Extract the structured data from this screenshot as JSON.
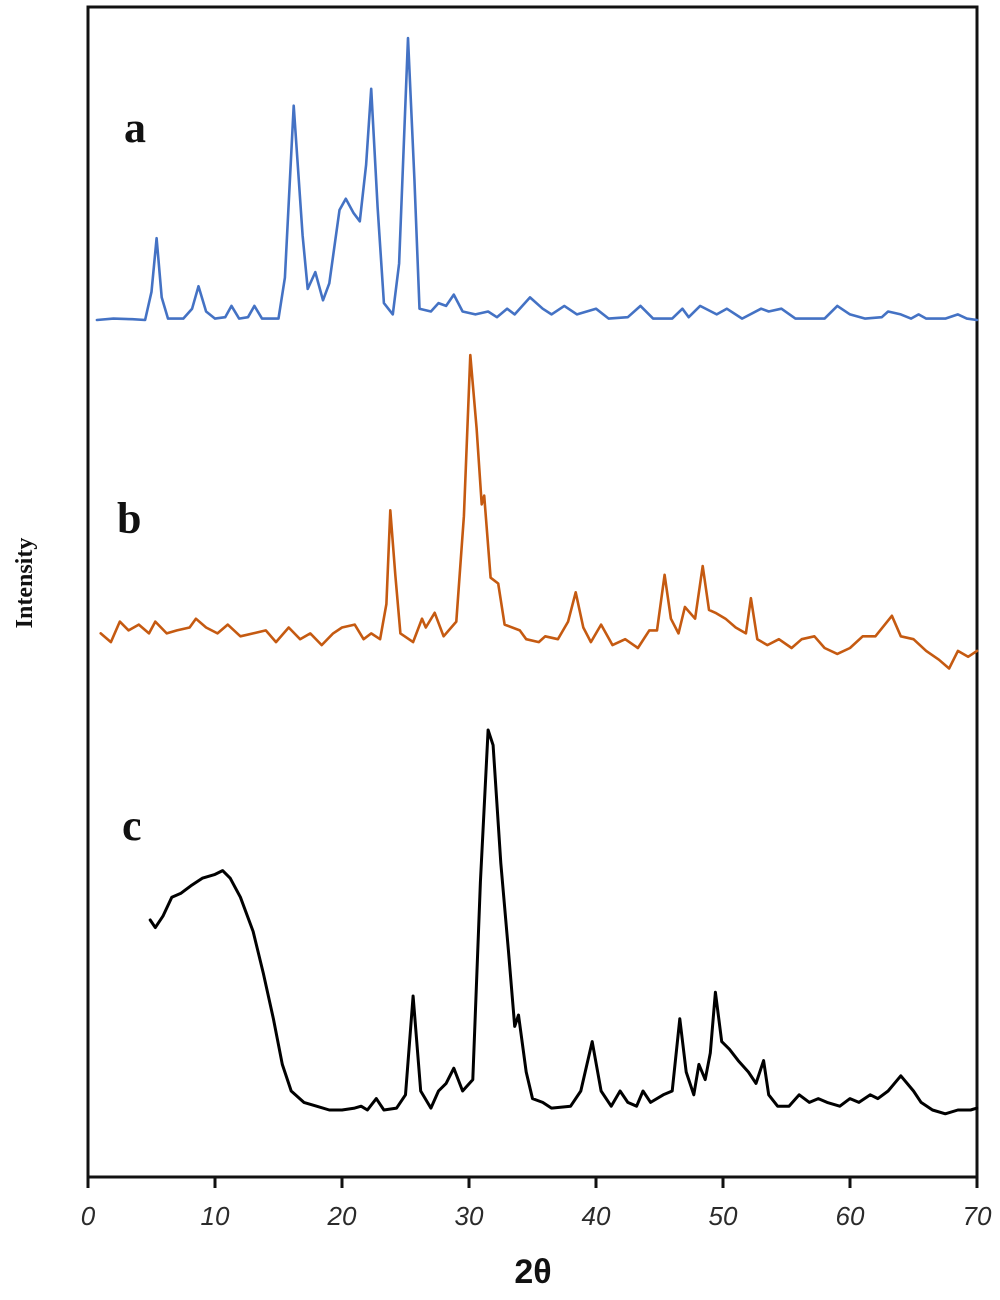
{
  "chart_data": {
    "type": "line",
    "title": "",
    "xlabel": "2θ",
    "ylabel": "Intensity",
    "xlim": [
      0,
      70
    ],
    "x_ticks": [
      0,
      10,
      20,
      30,
      40,
      50,
      60,
      70
    ],
    "x_tick_labels": [
      "0",
      "10",
      "20",
      "30",
      "40",
      "50",
      "60",
      "70"
    ],
    "y_ticks": [],
    "grid": false,
    "legend": "none (traces labeled inline a, b, c)",
    "note": "Stacked XRD patterns; intensity in arbitrary units, vertically offset. y values are relative (0 = trace baseline region, 100 = tallest peak of that trace).",
    "series": [
      {
        "name": "a",
        "label": "a",
        "color": "#4472C4",
        "peaks_2theta": [
          5.4,
          8.7,
          11.3,
          13.1,
          16.2,
          17.9,
          20.3,
          22.3,
          25.2,
          28.8,
          34.8,
          37.5,
          43.5,
          48,
          53.5,
          59,
          63
        ],
        "points": [
          [
            0.7,
            0
          ],
          [
            2,
            0.5
          ],
          [
            3.5,
            0.3
          ],
          [
            4.5,
            0
          ],
          [
            5.0,
            10
          ],
          [
            5.4,
            29
          ],
          [
            5.8,
            8
          ],
          [
            6.3,
            0.5
          ],
          [
            7.5,
            0.5
          ],
          [
            8.2,
            4
          ],
          [
            8.7,
            12
          ],
          [
            9.3,
            3
          ],
          [
            10,
            0.5
          ],
          [
            10.8,
            1
          ],
          [
            11.3,
            5
          ],
          [
            11.9,
            0.5
          ],
          [
            12.6,
            1
          ],
          [
            13.1,
            5
          ],
          [
            13.7,
            0.5
          ],
          [
            15.0,
            0.5
          ],
          [
            15.5,
            15
          ],
          [
            16.2,
            76
          ],
          [
            16.9,
            30
          ],
          [
            17.3,
            11
          ],
          [
            17.9,
            17
          ],
          [
            18.5,
            7
          ],
          [
            19.0,
            13
          ],
          [
            19.8,
            39
          ],
          [
            20.3,
            43
          ],
          [
            20.9,
            38
          ],
          [
            21.4,
            35
          ],
          [
            21.9,
            55
          ],
          [
            22.3,
            82
          ],
          [
            22.8,
            40
          ],
          [
            23.3,
            6
          ],
          [
            24.0,
            2
          ],
          [
            24.5,
            20
          ],
          [
            25.2,
            100
          ],
          [
            25.7,
            50
          ],
          [
            26.1,
            4
          ],
          [
            27.0,
            3
          ],
          [
            27.6,
            6
          ],
          [
            28.2,
            5
          ],
          [
            28.8,
            9
          ],
          [
            29.5,
            3
          ],
          [
            30.5,
            2
          ],
          [
            31.5,
            3
          ],
          [
            32.2,
            1
          ],
          [
            33.0,
            4
          ],
          [
            33.6,
            2
          ],
          [
            34.8,
            8
          ],
          [
            35.8,
            4
          ],
          [
            36.5,
            2
          ],
          [
            37.5,
            5
          ],
          [
            38.5,
            2
          ],
          [
            40.0,
            4
          ],
          [
            41,
            0.5
          ],
          [
            42.5,
            1
          ],
          [
            43.5,
            5
          ],
          [
            44.5,
            0.5
          ],
          [
            46.0,
            0.5
          ],
          [
            46.8,
            4
          ],
          [
            47.3,
            1
          ],
          [
            48.2,
            5
          ],
          [
            49.5,
            2
          ],
          [
            50.3,
            4
          ],
          [
            51.5,
            0.5
          ],
          [
            53.0,
            4
          ],
          [
            53.6,
            3
          ],
          [
            54.6,
            4
          ],
          [
            55.7,
            0.5
          ],
          [
            58.0,
            0.5
          ],
          [
            59.0,
            5
          ],
          [
            60.0,
            2
          ],
          [
            61.2,
            0.5
          ],
          [
            62.5,
            1
          ],
          [
            63.0,
            3
          ],
          [
            64.0,
            2
          ],
          [
            64.8,
            0.5
          ],
          [
            65.4,
            2
          ],
          [
            66.0,
            0.5
          ],
          [
            67.5,
            0.5
          ],
          [
            68.5,
            2
          ],
          [
            69.2,
            0.5
          ],
          [
            70.0,
            0
          ]
        ]
      },
      {
        "name": "b",
        "label": "b",
        "color": "#C55A11",
        "peaks_2theta": [
          23.8,
          26.5,
          27.3,
          30.1,
          31.2,
          32.3,
          38.4,
          45.4,
          47,
          48.4,
          52.2,
          63.3
        ],
        "points": [
          [
            1.0,
            5
          ],
          [
            1.8,
            2
          ],
          [
            2.5,
            9
          ],
          [
            3.2,
            6
          ],
          [
            4.0,
            8
          ],
          [
            4.8,
            5
          ],
          [
            5.3,
            9
          ],
          [
            6.2,
            5
          ],
          [
            7.0,
            6
          ],
          [
            8.0,
            7
          ],
          [
            8.5,
            10
          ],
          [
            9.3,
            7
          ],
          [
            10.2,
            5
          ],
          [
            11.0,
            8
          ],
          [
            12.0,
            4
          ],
          [
            13.0,
            5
          ],
          [
            14.0,
            6
          ],
          [
            14.8,
            2
          ],
          [
            15.8,
            7
          ],
          [
            16.7,
            3
          ],
          [
            17.5,
            5
          ],
          [
            18.4,
            1
          ],
          [
            19.3,
            5
          ],
          [
            20.0,
            7
          ],
          [
            21.0,
            8
          ],
          [
            21.7,
            3
          ],
          [
            22.3,
            5
          ],
          [
            23.0,
            3
          ],
          [
            23.5,
            15
          ],
          [
            23.8,
            47
          ],
          [
            24.2,
            25
          ],
          [
            24.6,
            5
          ],
          [
            25.6,
            2
          ],
          [
            26.3,
            10
          ],
          [
            26.6,
            7
          ],
          [
            27.3,
            12
          ],
          [
            28.0,
            4
          ],
          [
            29.0,
            9
          ],
          [
            29.6,
            45
          ],
          [
            30.1,
            100
          ],
          [
            30.6,
            75
          ],
          [
            31.0,
            49
          ],
          [
            31.2,
            52
          ],
          [
            31.7,
            24
          ],
          [
            32.3,
            22
          ],
          [
            32.8,
            8
          ],
          [
            34.0,
            6
          ],
          [
            34.5,
            3
          ],
          [
            35.5,
            2
          ],
          [
            36.0,
            4
          ],
          [
            37.0,
            3
          ],
          [
            37.8,
            9
          ],
          [
            38.4,
            19
          ],
          [
            39.0,
            7
          ],
          [
            39.6,
            2
          ],
          [
            40.4,
            8
          ],
          [
            41.3,
            1
          ],
          [
            42.3,
            3
          ],
          [
            43.3,
            0
          ],
          [
            44.2,
            6
          ],
          [
            44.8,
            6
          ],
          [
            45.4,
            25
          ],
          [
            45.9,
            10
          ],
          [
            46.5,
            5
          ],
          [
            47.0,
            14
          ],
          [
            47.8,
            10
          ],
          [
            48.4,
            28
          ],
          [
            48.9,
            13
          ],
          [
            49.4,
            12
          ],
          [
            50.2,
            10
          ],
          [
            51.0,
            7
          ],
          [
            51.8,
            5
          ],
          [
            52.2,
            17
          ],
          [
            52.7,
            3
          ],
          [
            53.5,
            1
          ],
          [
            54.4,
            3
          ],
          [
            55.4,
            0
          ],
          [
            56.2,
            3
          ],
          [
            57.2,
            4
          ],
          [
            58.0,
            0
          ],
          [
            59.0,
            -2
          ],
          [
            60.0,
            0
          ],
          [
            61.0,
            4
          ],
          [
            62.0,
            4
          ],
          [
            63.3,
            11
          ],
          [
            64.0,
            4
          ],
          [
            65.0,
            3
          ],
          [
            66.0,
            -1
          ],
          [
            67.0,
            -4
          ],
          [
            67.8,
            -7
          ],
          [
            68.5,
            -1
          ],
          [
            69.3,
            -3
          ],
          [
            70.0,
            -1
          ]
        ]
      },
      {
        "name": "c",
        "label": "c",
        "color": "#000000",
        "peaks_2theta": [
          10.5,
          22.7,
          25.6,
          28.8,
          31.7,
          33.9,
          39.7,
          41.9,
          46.6,
          48,
          49.4,
          53.2,
          56,
          64
        ],
        "points": [
          [
            4.9,
            50
          ],
          [
            5.3,
            48
          ],
          [
            5.9,
            51
          ],
          [
            6.6,
            56
          ],
          [
            7.3,
            57
          ],
          [
            8.1,
            59
          ],
          [
            9.0,
            61
          ],
          [
            10.0,
            62
          ],
          [
            10.6,
            63
          ],
          [
            11.2,
            61
          ],
          [
            12.0,
            56
          ],
          [
            13.0,
            47
          ],
          [
            13.8,
            36
          ],
          [
            14.6,
            24
          ],
          [
            15.3,
            12
          ],
          [
            16.0,
            5
          ],
          [
            17.0,
            2
          ],
          [
            18.0,
            1
          ],
          [
            19.0,
            0
          ],
          [
            20.0,
            0
          ],
          [
            21.0,
            0.5
          ],
          [
            21.5,
            1
          ],
          [
            22.0,
            0
          ],
          [
            22.7,
            3
          ],
          [
            23.3,
            0
          ],
          [
            24.3,
            0.5
          ],
          [
            25.0,
            4
          ],
          [
            25.6,
            30
          ],
          [
            26.2,
            5
          ],
          [
            27.0,
            0.5
          ],
          [
            27.6,
            5
          ],
          [
            28.2,
            7
          ],
          [
            28.8,
            11
          ],
          [
            29.5,
            5
          ],
          [
            30.3,
            8
          ],
          [
            30.9,
            60
          ],
          [
            31.5,
            100
          ],
          [
            31.9,
            96
          ],
          [
            32.5,
            65
          ],
          [
            33.1,
            42
          ],
          [
            33.6,
            22
          ],
          [
            33.9,
            25
          ],
          [
            34.5,
            10
          ],
          [
            35.0,
            3
          ],
          [
            35.8,
            2
          ],
          [
            36.5,
            0.5
          ],
          [
            38.0,
            1
          ],
          [
            38.8,
            5
          ],
          [
            39.7,
            18
          ],
          [
            40.4,
            5
          ],
          [
            41.2,
            1
          ],
          [
            41.9,
            5
          ],
          [
            42.5,
            2
          ],
          [
            43.2,
            1
          ],
          [
            43.7,
            5
          ],
          [
            44.3,
            2
          ],
          [
            45.3,
            4
          ],
          [
            46.0,
            5
          ],
          [
            46.6,
            24
          ],
          [
            47.1,
            10
          ],
          [
            47.7,
            4
          ],
          [
            48.1,
            12
          ],
          [
            48.6,
            8
          ],
          [
            49.0,
            15
          ],
          [
            49.4,
            31
          ],
          [
            49.9,
            18
          ],
          [
            50.5,
            16
          ],
          [
            51.2,
            13
          ],
          [
            52.0,
            10
          ],
          [
            52.6,
            7
          ],
          [
            53.2,
            13
          ],
          [
            53.6,
            4
          ],
          [
            54.3,
            1
          ],
          [
            55.2,
            1
          ],
          [
            56.0,
            4
          ],
          [
            56.8,
            2
          ],
          [
            57.5,
            3
          ],
          [
            58.2,
            2
          ],
          [
            59.2,
            1
          ],
          [
            60.0,
            3
          ],
          [
            60.7,
            2
          ],
          [
            61.6,
            4
          ],
          [
            62.2,
            3
          ],
          [
            63.0,
            5
          ],
          [
            64.0,
            9
          ],
          [
            65.0,
            5
          ],
          [
            65.6,
            2
          ],
          [
            66.5,
            0
          ],
          [
            67.5,
            -1
          ],
          [
            68.5,
            0
          ],
          [
            69.5,
            0
          ],
          [
            70.0,
            0.5
          ]
        ]
      }
    ]
  },
  "labels": {
    "a": "a",
    "b": "b",
    "c": "c",
    "xlabel": "2θ",
    "ylabel": "Intensity"
  }
}
